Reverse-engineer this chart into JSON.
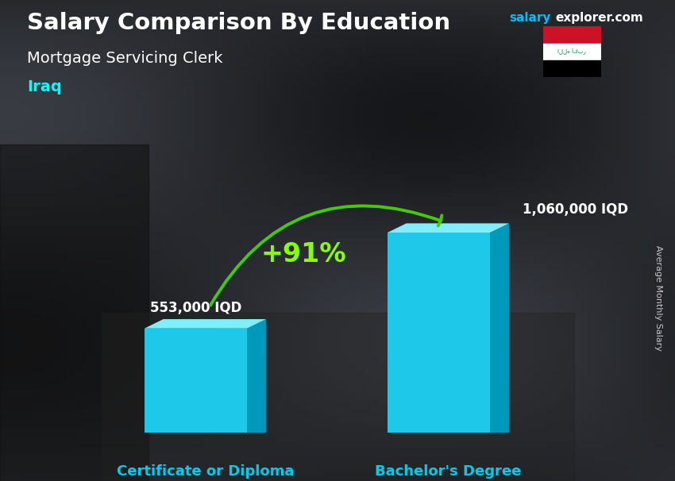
{
  "title": "Salary Comparison By Education",
  "subtitle_job": "Mortgage Servicing Clerk",
  "subtitle_country": "Iraq",
  "brand_salary": "salary",
  "brand_explorer": "explorer.com",
  "ylabel": "Average Monthly Salary",
  "categories": [
    "Certificate or Diploma",
    "Bachelor's Degree"
  ],
  "values": [
    553000,
    1060000
  ],
  "value_labels": [
    "553,000 IQD",
    "1,060,000 IQD"
  ],
  "bar_color_front": "#1EC8E8",
  "bar_color_top": "#7FEFFF",
  "bar_color_side": "#0099BB",
  "pct_label": "+91%",
  "pct_color": "#88FF00",
  "arrow_color": "#44CC00",
  "title_color": "#FFFFFF",
  "subtitle_job_color": "#FFFFFF",
  "subtitle_country_color": "#00FFFF",
  "category_label_color": "#00CCEE",
  "value_label_color": "#FFFFFF",
  "brand_color1": "#00BFFF",
  "brand_color2": "#FFFFFF",
  "bg_color": "#2d3748",
  "figsize": [
    8.5,
    6.06
  ],
  "dpi": 100,
  "ylim": [
    0,
    1400000
  ]
}
